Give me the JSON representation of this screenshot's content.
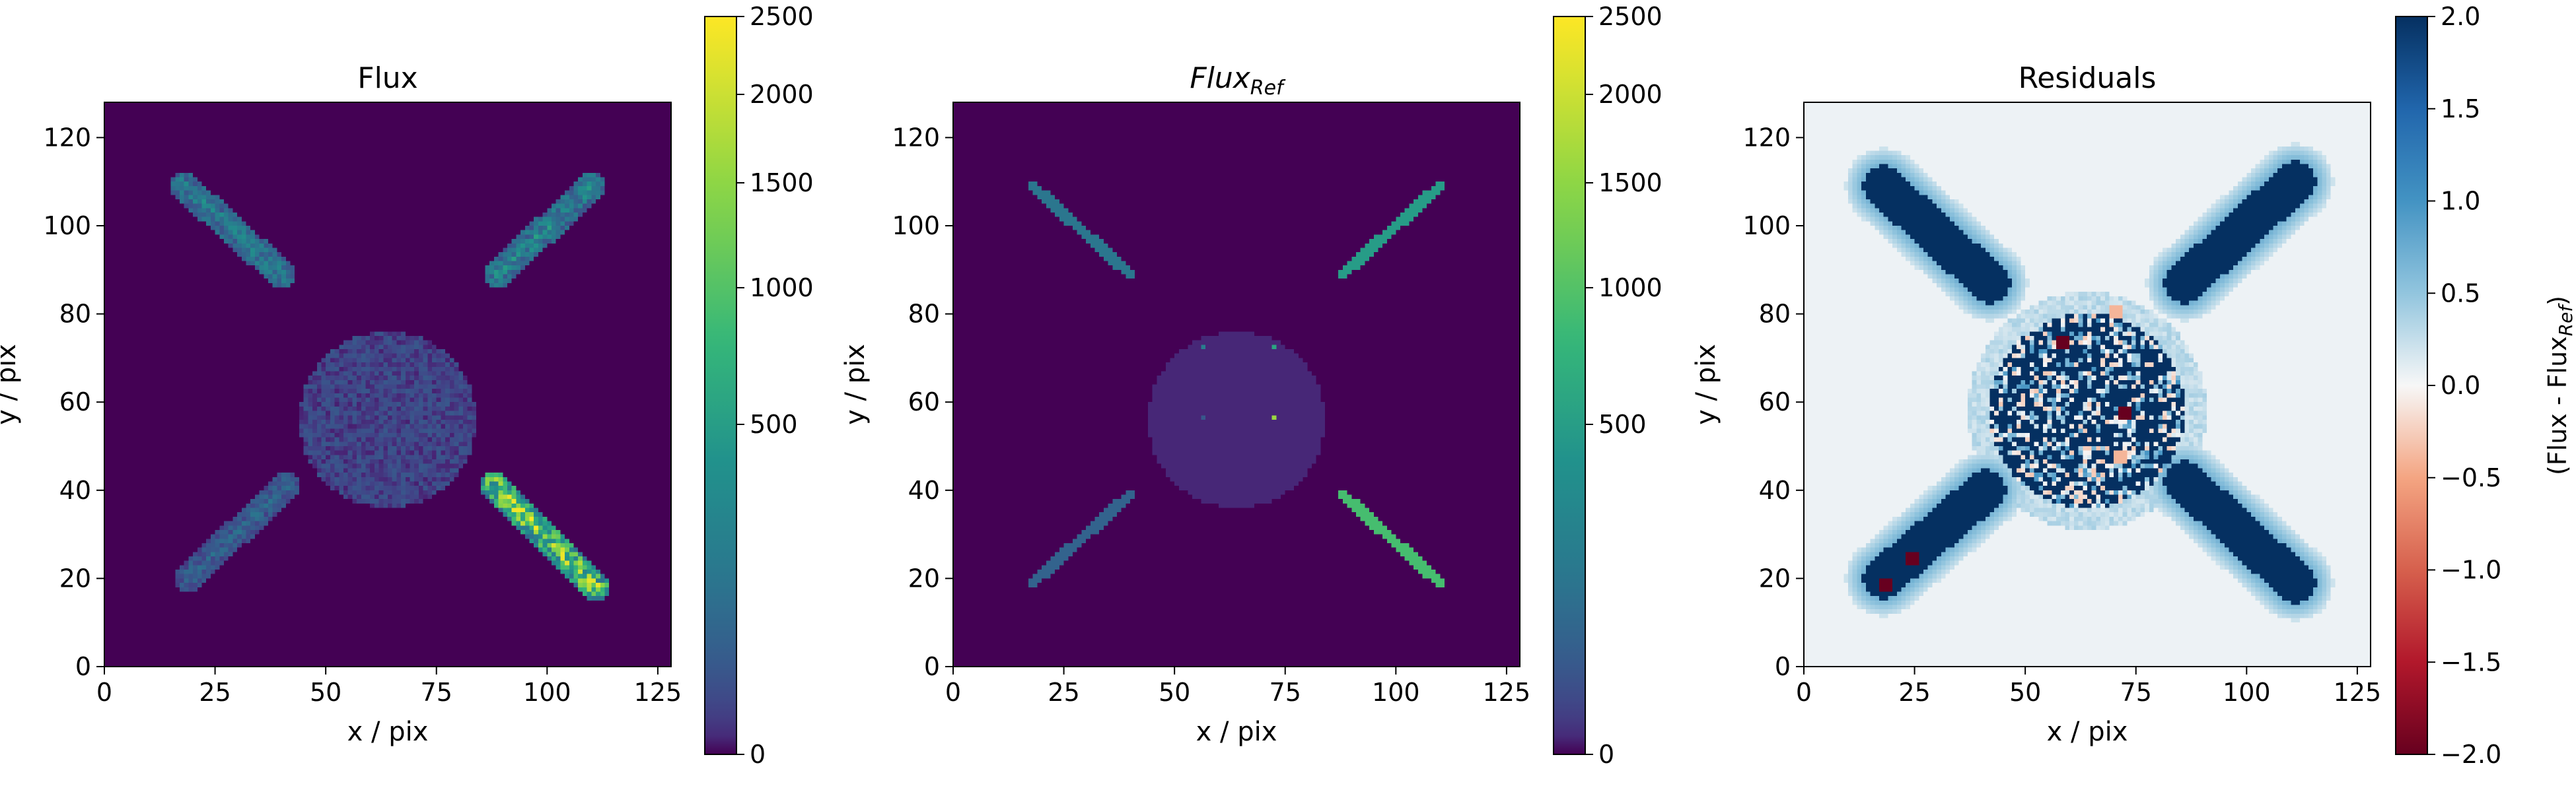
{
  "colors": {
    "viridis_dark": "#440154",
    "viridis_mid": "#21918c",
    "viridis_light": "#fde725",
    "rdbu_dark_red": "#67001f",
    "rdbu_dark_blue": "#053061",
    "axis_black": "#000000"
  },
  "chart_data": [
    {
      "type": "heatmap",
      "title": "Flux",
      "xlabel": "x / pix",
      "ylabel": "y / pix",
      "xlim": [
        0,
        128
      ],
      "ylim": [
        0,
        128
      ],
      "xticks": [
        0,
        25,
        50,
        75,
        100,
        125
      ],
      "yticks": [
        0,
        20,
        40,
        60,
        80,
        100,
        120
      ],
      "colormap": "viridis",
      "color_scale": "sqrt",
      "color_range": [
        0,
        2500
      ],
      "colorbar": {
        "label": "",
        "ticks": [
          0,
          500,
          1000,
          1500,
          2000,
          2500
        ],
        "tick_labels": [
          "0",
          "500",
          "1000",
          "1500",
          "2000",
          "2500"
        ]
      },
      "background_value": 0,
      "features": [
        {
          "shape": "line",
          "x": [
            18,
            40
          ],
          "y": [
            109,
            89
          ],
          "value": 900,
          "noisy": true
        },
        {
          "shape": "line",
          "x": [
            89,
            110
          ],
          "y": [
            89,
            109
          ],
          "value": 1000,
          "noisy": true
        },
        {
          "shape": "line",
          "x": [
            19,
            41
          ],
          "y": [
            20,
            41
          ],
          "value": 500,
          "noisy": true
        },
        {
          "shape": "line",
          "x": [
            88,
            111
          ],
          "y": [
            41,
            18
          ],
          "value": 2300,
          "noisy": true
        },
        {
          "shape": "disk",
          "center": [
            64,
            56
          ],
          "radius": 20,
          "value": 150,
          "noisy": true
        }
      ]
    },
    {
      "type": "heatmap",
      "title": "Flux",
      "title_subscript": "Ref",
      "xlabel": "x / pix",
      "ylabel": "y / pix",
      "xlim": [
        0,
        128
      ],
      "ylim": [
        0,
        128
      ],
      "xticks": [
        0,
        25,
        50,
        75,
        100,
        125
      ],
      "yticks": [
        0,
        20,
        40,
        60,
        80,
        100,
        120
      ],
      "colormap": "viridis",
      "color_scale": "sqrt",
      "color_range": [
        0,
        2500
      ],
      "colorbar": {
        "label": "",
        "ticks": [
          0,
          500,
          1000,
          1500,
          2000,
          2500
        ],
        "tick_labels": [
          "0",
          "500",
          "1000",
          "1500",
          "2000",
          "2500"
        ]
      },
      "background_value": 0,
      "features": [
        {
          "shape": "line",
          "x": [
            18,
            40
          ],
          "y": [
            109,
            89
          ],
          "value": 600
        },
        {
          "shape": "line",
          "x": [
            88,
            110
          ],
          "y": [
            89,
            109
          ],
          "value": 1100
        },
        {
          "shape": "line",
          "x": [
            18,
            40
          ],
          "y": [
            19,
            39
          ],
          "value": 400
        },
        {
          "shape": "line",
          "x": [
            88,
            110
          ],
          "y": [
            39,
            19
          ],
          "value": 1500
        },
        {
          "shape": "disk",
          "center": [
            64,
            56
          ],
          "radius": 20,
          "value": 50
        },
        {
          "shape": "point",
          "center": [
            56,
            72
          ],
          "value": 700
        },
        {
          "shape": "point",
          "center": [
            72,
            72
          ],
          "value": 1200
        },
        {
          "shape": "point",
          "center": [
            56,
            56
          ],
          "value": 300
        },
        {
          "shape": "point",
          "center": [
            72,
            56
          ],
          "value": 2000
        }
      ]
    },
    {
      "type": "heatmap",
      "title": "Residuals",
      "xlabel": "x / pix",
      "ylabel": "y / pix",
      "xlim": [
        0,
        128
      ],
      "ylim": [
        0,
        128
      ],
      "xticks": [
        0,
        25,
        50,
        75,
        100,
        125
      ],
      "yticks": [
        0,
        20,
        40,
        60,
        80,
        100,
        120
      ],
      "colormap": "RdBu",
      "color_scale": "linear",
      "color_range": [
        -2,
        2
      ],
      "colorbar": {
        "label": "(Flux - Flux",
        "label_subscript": "Ref",
        "label_suffix": ")",
        "ticks": [
          -2.0,
          -1.5,
          -1.0,
          -0.5,
          0.0,
          0.5,
          1.0,
          1.5,
          2.0
        ],
        "tick_labels": [
          "−2.0",
          "−1.5",
          "−1.0",
          "−0.5",
          "0.0",
          "0.5",
          "1.0",
          "1.5",
          "2.0"
        ]
      },
      "background_value": 0.05,
      "features": [
        {
          "shape": "line",
          "x": [
            18,
            42
          ],
          "y": [
            109,
            87
          ],
          "value": 2.0,
          "halo": true
        },
        {
          "shape": "line",
          "x": [
            86,
            111
          ],
          "y": [
            87,
            110
          ],
          "value": 2.0,
          "halo": true
        },
        {
          "shape": "line",
          "x": [
            18,
            41
          ],
          "y": [
            20,
            40
          ],
          "value": 2.0,
          "halo": true
        },
        {
          "shape": "line",
          "x": [
            86,
            111
          ],
          "y": [
            42,
            19
          ],
          "value": 2.0,
          "halo": true
        },
        {
          "shape": "disk",
          "center": [
            64,
            58
          ],
          "radius": 22,
          "value": 2.0,
          "patchy": true
        },
        {
          "shape": "point",
          "center": [
            18,
            18
          ],
          "value": -2.0
        },
        {
          "shape": "point",
          "center": [
            24,
            24
          ],
          "value": -2.0
        },
        {
          "shape": "point",
          "center": [
            58,
            73
          ],
          "value": -2.0
        },
        {
          "shape": "point",
          "center": [
            72,
            57
          ],
          "value": -2.0
        },
        {
          "shape": "point",
          "center": [
            70,
            80
          ],
          "value": -0.4
        },
        {
          "shape": "point",
          "center": [
            71,
            47
          ],
          "value": -0.4
        }
      ]
    }
  ]
}
